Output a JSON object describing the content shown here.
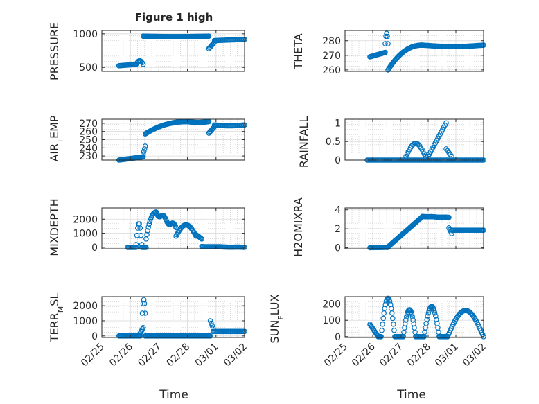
{
  "figure": {
    "title": "Figure 1 high",
    "marker_color": "#0072BD",
    "axes_color": "#262626",
    "grid_color": "#bfbfbf"
  },
  "chart_data": [
    {
      "type": "scatter",
      "name": "pressure",
      "ylabel": "PRESSURE",
      "xlim": [
        0,
        5
      ],
      "ylim": [
        440,
        1050
      ],
      "yticks": [
        500,
        1000
      ],
      "xticklabels": [],
      "xlabel": "",
      "segments": [
        {
          "x0": 0.6,
          "x1": 1.2,
          "n": 22,
          "y0": 525,
          "y1": 545,
          "shape": "rise"
        },
        {
          "x0": 1.2,
          "x1": 1.45,
          "n": 8,
          "y0": 545,
          "y1": 600,
          "shape": "bump"
        },
        {
          "x0": 1.45,
          "x1": 3.75,
          "n": 90,
          "y0": 965,
          "y1": 958,
          "shape": "bump"
        },
        {
          "x0": 3.75,
          "x1": 3.95,
          "n": 8,
          "y0": 780,
          "y1": 880,
          "shape": "rise"
        },
        {
          "x0": 3.95,
          "x1": 5.0,
          "n": 30,
          "y0": 900,
          "y1": 918,
          "shape": "rise"
        }
      ]
    },
    {
      "type": "scatter",
      "name": "theta",
      "ylabel": "THETA",
      "xlim": [
        0,
        5
      ],
      "ylim": [
        259,
        287
      ],
      "yticks": [
        260,
        270,
        280
      ],
      "xticklabels": [],
      "xlabel": "",
      "segments": [
        {
          "x0": 0.9,
          "x1": 1.45,
          "n": 20,
          "y0": 269,
          "y1": 272,
          "shape": "rise"
        },
        {
          "x0": 1.45,
          "x1": 1.55,
          "n": 5,
          "y0": 278,
          "y1": 285,
          "shape": "bump"
        },
        {
          "x0": 1.55,
          "x1": 2.8,
          "n": 50,
          "y0": 260,
          "y1": 277,
          "shape": "sat"
        },
        {
          "x0": 2.8,
          "x1": 5.0,
          "n": 70,
          "y0": 277,
          "y1": 276,
          "shape": "bump"
        }
      ]
    },
    {
      "type": "scatter",
      "name": "air_temp",
      "ylabel": "AIR_TEMP",
      "xlim": [
        0,
        5
      ],
      "ylim": [
        225,
        275
      ],
      "yticks": [
        230,
        240,
        250,
        260,
        270
      ],
      "xticklabels": [],
      "xlabel": "",
      "segments": [
        {
          "x0": 0.6,
          "x1": 1.45,
          "n": 28,
          "y0": 225,
          "y1": 229,
          "shape": "rise"
        },
        {
          "x0": 1.45,
          "x1": 1.52,
          "n": 4,
          "y0": 232,
          "y1": 242,
          "shape": "rise"
        },
        {
          "x0": 1.52,
          "x1": 3.0,
          "n": 60,
          "y0": 257,
          "y1": 272,
          "shape": "sat"
        },
        {
          "x0": 3.0,
          "x1": 3.75,
          "n": 28,
          "y0": 272,
          "y1": 271,
          "shape": "bump"
        },
        {
          "x0": 3.75,
          "x1": 3.95,
          "n": 8,
          "y0": 258,
          "y1": 266,
          "shape": "rise"
        },
        {
          "x0": 3.95,
          "x1": 5.0,
          "n": 30,
          "y0": 268,
          "y1": 267,
          "shape": "bump"
        }
      ]
    },
    {
      "type": "scatter",
      "name": "rainfall",
      "ylabel": "RAINFALL",
      "xlim": [
        0,
        5
      ],
      "ylim": [
        0,
        1.1
      ],
      "yticks": [
        0,
        0.5,
        1
      ],
      "xticklabels": [],
      "xlabel": "",
      "segments": [
        {
          "x0": 0.8,
          "x1": 5.0,
          "n": 110,
          "y0": 0,
          "y1": 0,
          "shape": "rise"
        },
        {
          "x0": 2.2,
          "x1": 2.9,
          "n": 18,
          "y0": 0.1,
          "y1": 0.45,
          "shape": "bump"
        },
        {
          "x0": 3.0,
          "x1": 3.65,
          "n": 16,
          "y0": 0.1,
          "y1": 1.0,
          "shape": "rise"
        },
        {
          "x0": 3.65,
          "x1": 3.85,
          "n": 5,
          "y0": 0.3,
          "y1": 0.1,
          "shape": "rise"
        }
      ]
    },
    {
      "type": "scatter",
      "name": "mixdepth",
      "ylabel": "MIXDEPTH",
      "xlim": [
        0,
        5
      ],
      "ylim": [
        -100,
        2800
      ],
      "yticks": [
        0,
        1000,
        2000
      ],
      "xticklabels": [],
      "xlabel": "",
      "segments": [
        {
          "x0": 0.9,
          "x1": 1.2,
          "n": 10,
          "y0": 0,
          "y1": 0,
          "shape": "rise"
        },
        {
          "x0": 1.2,
          "x1": 1.4,
          "n": 8,
          "y0": 200,
          "y1": 1700,
          "shape": "bump"
        },
        {
          "x0": 1.4,
          "x1": 1.55,
          "n": 6,
          "y0": 0,
          "y1": 0,
          "shape": "rise"
        },
        {
          "x0": 1.55,
          "x1": 1.9,
          "n": 14,
          "y0": 600,
          "y1": 2500,
          "shape": "sat"
        },
        {
          "x0": 1.9,
          "x1": 2.6,
          "n": 28,
          "y0": 2500,
          "y1": 1400,
          "shape": "wave"
        },
        {
          "x0": 2.6,
          "x1": 3.3,
          "n": 26,
          "y0": 800,
          "y1": 1600,
          "shape": "bump"
        },
        {
          "x0": 3.3,
          "x1": 3.5,
          "n": 8,
          "y0": 900,
          "y1": 600,
          "shape": "rise"
        },
        {
          "x0": 3.5,
          "x1": 5.0,
          "n": 45,
          "y0": 60,
          "y1": 0,
          "shape": "wave"
        }
      ]
    },
    {
      "type": "scatter",
      "name": "h2omixra",
      "ylabel": "H2OMIXRA",
      "xlim": [
        0,
        5
      ],
      "ylim": [
        -0.1,
        4.2
      ],
      "yticks": [
        0,
        2,
        4
      ],
      "xticklabels": [],
      "xlabel": "",
      "segments": [
        {
          "x0": 0.9,
          "x1": 1.55,
          "n": 24,
          "y0": 0.02,
          "y1": 0.05,
          "shape": "rise"
        },
        {
          "x0": 1.55,
          "x1": 2.8,
          "n": 50,
          "y0": 0.1,
          "y1": 3.3,
          "shape": "rise"
        },
        {
          "x0": 2.8,
          "x1": 3.75,
          "n": 36,
          "y0": 3.3,
          "y1": 3.2,
          "shape": "wave"
        },
        {
          "x0": 3.75,
          "x1": 3.85,
          "n": 4,
          "y0": 2.1,
          "y1": 1.5,
          "shape": "rise"
        },
        {
          "x0": 3.85,
          "x1": 5.0,
          "n": 34,
          "y0": 1.85,
          "y1": 1.85,
          "shape": "rise"
        }
      ]
    },
    {
      "type": "scatter",
      "name": "terr_msl",
      "ylabel": "TERR_MSL",
      "xlim": [
        0,
        5
      ],
      "ylim": [
        -100,
        2600
      ],
      "yticks": [
        0,
        1000,
        2000
      ],
      "xticklabels": [
        "02/25",
        "02/26",
        "02/27",
        "02/28",
        "03/01",
        "03/02"
      ],
      "xlabel": "Time",
      "segments": [
        {
          "x0": 0.6,
          "x1": 1.35,
          "n": 28,
          "y0": 0,
          "y1": 0,
          "shape": "rise"
        },
        {
          "x0": 1.35,
          "x1": 1.45,
          "n": 5,
          "y0": 200,
          "y1": 550,
          "shape": "rise"
        },
        {
          "x0": 1.42,
          "x1": 1.52,
          "n": 5,
          "y0": 1500,
          "y1": 2400,
          "shape": "bump"
        },
        {
          "x0": 1.52,
          "x1": 3.8,
          "n": 85,
          "y0": 0,
          "y1": 0,
          "shape": "rise"
        },
        {
          "x0": 3.8,
          "x1": 3.9,
          "n": 4,
          "y0": 1000,
          "y1": 500,
          "shape": "rise"
        },
        {
          "x0": 3.9,
          "x1": 5.0,
          "n": 32,
          "y0": 300,
          "y1": 300,
          "shape": "rise"
        }
      ]
    },
    {
      "type": "scatter",
      "name": "sun_flux",
      "ylabel": "SUN_FLUX",
      "xlim": [
        0,
        5
      ],
      "ylim": [
        -5,
        245
      ],
      "yticks": [
        0,
        100,
        200
      ],
      "xticklabels": [
        "02/25",
        "02/26",
        "02/27",
        "02/28",
        "03/01",
        "03/02"
      ],
      "xlabel": "Time",
      "segments": [
        {
          "x0": 0.9,
          "x1": 1.2,
          "n": 12,
          "y0": 75,
          "y1": 0,
          "shape": "rise"
        },
        {
          "x0": 1.2,
          "x1": 1.3,
          "n": 5,
          "y0": 0,
          "y1": 0,
          "shape": "rise"
        },
        {
          "x0": 1.3,
          "x1": 1.8,
          "n": 20,
          "y0": 0,
          "y1": 235,
          "shape": "bump"
        },
        {
          "x0": 1.8,
          "x1": 2.1,
          "n": 10,
          "y0": 0,
          "y1": 0,
          "shape": "rise"
        },
        {
          "x0": 2.1,
          "x1": 2.55,
          "n": 20,
          "y0": 0,
          "y1": 165,
          "shape": "bump"
        },
        {
          "x0": 2.55,
          "x1": 2.85,
          "n": 10,
          "y0": 0,
          "y1": 0,
          "shape": "rise"
        },
        {
          "x0": 2.85,
          "x1": 3.4,
          "n": 22,
          "y0": 0,
          "y1": 185,
          "shape": "bump"
        },
        {
          "x0": 3.4,
          "x1": 3.7,
          "n": 10,
          "y0": 0,
          "y1": 0,
          "shape": "rise"
        },
        {
          "x0": 3.7,
          "x1": 5.0,
          "n": 40,
          "y0": 0,
          "y1": 160,
          "shape": "bump"
        }
      ]
    }
  ]
}
